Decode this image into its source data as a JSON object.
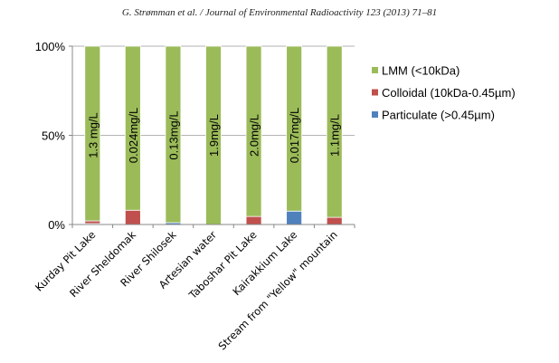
{
  "header": {
    "citation": "G. Strømman et al. / Journal of Environmental Radioactivity 123 (2013) 71–81"
  },
  "chart_data": {
    "type": "bar",
    "stacked": true,
    "percent": true,
    "categories": [
      "Kurday Pit Lake",
      "River Sheldomak",
      "River Shilosek",
      "Artesian water",
      "Taboshar Pit Lake",
      "Kairakkium Lake",
      "Stream from \"Yellow\" mountain"
    ],
    "bar_labels": [
      "1.3 mg/L",
      "0.024mg/L",
      "0.13mg/L",
      "1.9mg/L",
      "2.0mg/L",
      "0.017mg/L",
      "1.1mg/L"
    ],
    "series": [
      {
        "name": "Particulate (>0.45µm)",
        "color": "#4f81bd",
        "values": [
          0.5,
          0,
          1,
          0,
          0,
          7.5,
          0
        ]
      },
      {
        "name": "Colloidal (10kDa-0.45µm)",
        "color": "#c0504d",
        "values": [
          1.5,
          8,
          0,
          0,
          4.5,
          0,
          4
        ]
      },
      {
        "name": "LMM (<10kDa)",
        "color": "#9bbb59",
        "values": [
          98,
          92,
          99,
          100,
          95.5,
          92.5,
          96
        ]
      }
    ],
    "legend_order": [
      "LMM (<10kDa)",
      "Colloidal (10kDa-0.45µm)",
      "Particulate (>0.45µm)"
    ],
    "yticks": [
      "0%",
      "50%",
      "100%"
    ],
    "ylim": [
      0,
      100
    ],
    "grid": true,
    "legend_position": "right"
  }
}
